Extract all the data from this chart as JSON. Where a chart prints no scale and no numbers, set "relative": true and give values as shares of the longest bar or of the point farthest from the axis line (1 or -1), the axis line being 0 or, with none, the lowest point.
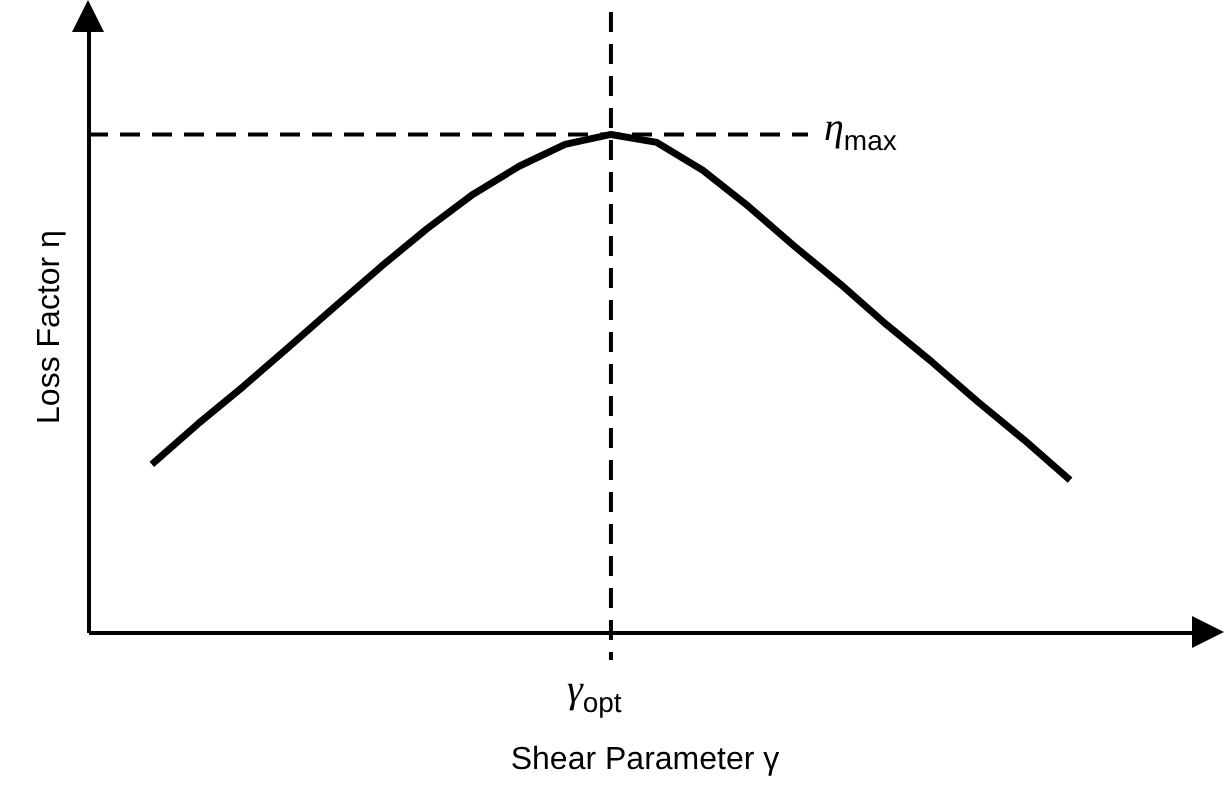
{
  "chart_data": {
    "type": "line",
    "relative": true,
    "xlabel": "Shear Parameter γ",
    "ylabel": "Loss Factor η",
    "categories": [
      null,
      null,
      null,
      null,
      null,
      null,
      null,
      null,
      null,
      null,
      null,
      null,
      null,
      null,
      null,
      null,
      null,
      null,
      null,
      null,
      null
    ],
    "series": [
      {
        "color": "#000000",
        "values": [
          0.337,
          0.418,
          0.494,
          0.574,
          0.655,
          0.735,
          0.811,
          0.88,
          0.936,
          0.98,
          1,
          0.984,
          0.928,
          0.855,
          0.775,
          0.699,
          0.618,
          0.542,
          0.462,
          0.386,
          0.305
        ]
      }
    ],
    "annotations": [
      "η$_{max}$",
      "γ$_{opt}$"
    ],
    "grid": false,
    "marker": "none",
    "line_style": "solid"
  }
}
